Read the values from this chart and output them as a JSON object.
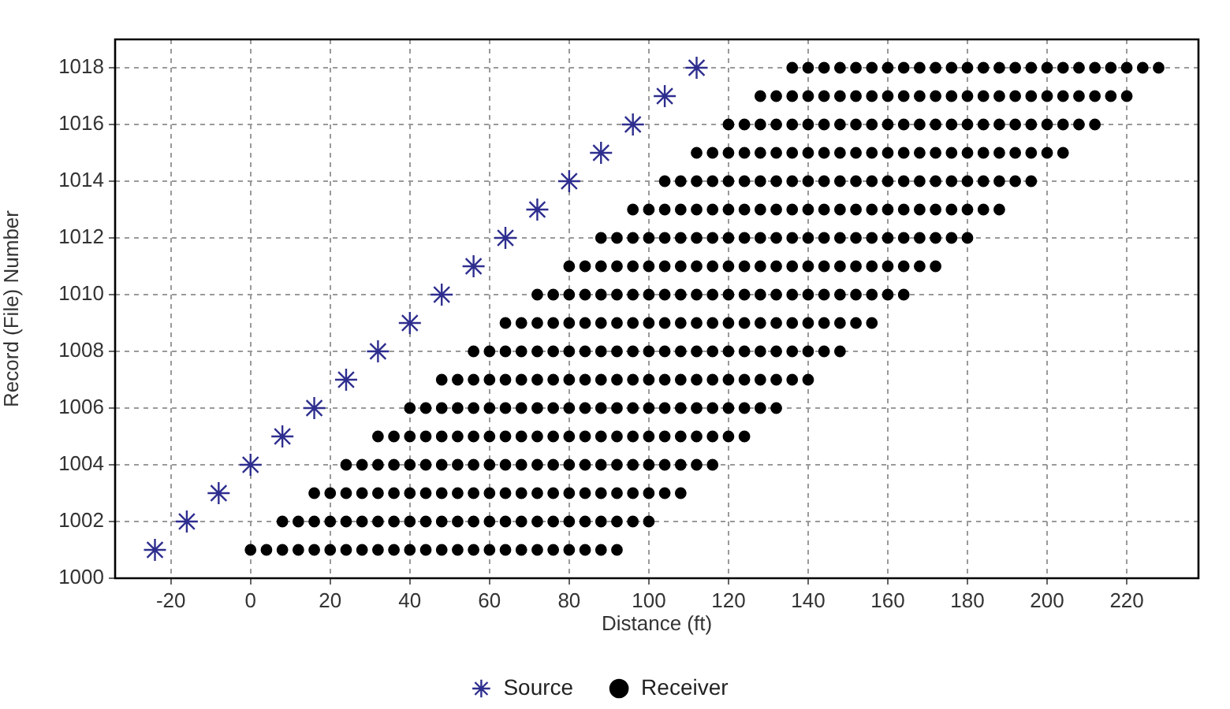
{
  "chart_data": {
    "type": "scatter",
    "xlabel": "Distance (ft)",
    "ylabel": "Record (File) Number",
    "xlim": [
      -34,
      238
    ],
    "xticks": [
      -20,
      0,
      20,
      40,
      60,
      80,
      100,
      120,
      140,
      160,
      180,
      200,
      220
    ],
    "ylim": [
      1000,
      1019
    ],
    "yticks": [
      1000,
      1002,
      1004,
      1006,
      1008,
      1010,
      1012,
      1014,
      1016,
      1018
    ],
    "grid": true,
    "legend": "bottom",
    "series": [
      {
        "name": "Source",
        "color": "#2e2e8f",
        "marker": "cross",
        "x": [
          -24,
          -16,
          -8,
          0,
          8,
          16,
          24,
          32,
          40,
          48,
          56,
          64,
          72,
          80,
          88,
          96,
          104,
          112
        ],
        "values": [
          1001,
          1002,
          1003,
          1004,
          1005,
          1006,
          1007,
          1008,
          1009,
          1010,
          1011,
          1012,
          1013,
          1014,
          1015,
          1016,
          1017,
          1018
        ]
      },
      {
        "name": "Receiver",
        "color": "#000000",
        "marker": "circle",
        "x": [
          0,
          4,
          8,
          12,
          16,
          20,
          24,
          28,
          32,
          36,
          40,
          44,
          48,
          52,
          56,
          60,
          64,
          68,
          72,
          76,
          80,
          84,
          88,
          92,
          8,
          12,
          16,
          20,
          24,
          28,
          32,
          36,
          40,
          44,
          48,
          52,
          56,
          60,
          64,
          68,
          72,
          76,
          80,
          84,
          88,
          92,
          96,
          100,
          16,
          20,
          24,
          28,
          32,
          36,
          40,
          44,
          48,
          52,
          56,
          60,
          64,
          68,
          72,
          76,
          80,
          84,
          88,
          92,
          96,
          100,
          104,
          108,
          24,
          28,
          32,
          36,
          40,
          44,
          48,
          52,
          56,
          60,
          64,
          68,
          72,
          76,
          80,
          84,
          88,
          92,
          96,
          100,
          104,
          108,
          112,
          116,
          32,
          36,
          40,
          44,
          48,
          52,
          56,
          60,
          64,
          68,
          72,
          76,
          80,
          84,
          88,
          92,
          96,
          100,
          104,
          108,
          112,
          116,
          120,
          124,
          40,
          44,
          48,
          52,
          56,
          60,
          64,
          68,
          72,
          76,
          80,
          84,
          88,
          92,
          96,
          100,
          104,
          108,
          112,
          116,
          120,
          124,
          128,
          132,
          48,
          52,
          56,
          60,
          64,
          68,
          72,
          76,
          80,
          84,
          88,
          92,
          96,
          100,
          104,
          108,
          112,
          116,
          120,
          124,
          128,
          132,
          136,
          140,
          56,
          60,
          64,
          68,
          72,
          76,
          80,
          84,
          88,
          92,
          96,
          100,
          104,
          108,
          112,
          116,
          120,
          124,
          128,
          132,
          136,
          140,
          144,
          148,
          64,
          68,
          72,
          76,
          80,
          84,
          88,
          92,
          96,
          100,
          104,
          108,
          112,
          116,
          120,
          124,
          128,
          132,
          136,
          140,
          144,
          148,
          152,
          156,
          72,
          76,
          80,
          84,
          88,
          92,
          96,
          100,
          104,
          108,
          112,
          116,
          120,
          124,
          128,
          132,
          136,
          140,
          144,
          148,
          152,
          156,
          160,
          164,
          80,
          84,
          88,
          92,
          96,
          100,
          104,
          108,
          112,
          116,
          120,
          124,
          128,
          132,
          136,
          140,
          144,
          148,
          152,
          156,
          160,
          164,
          168,
          172,
          88,
          92,
          96,
          100,
          104,
          108,
          112,
          116,
          120,
          124,
          128,
          132,
          136,
          140,
          144,
          148,
          152,
          156,
          160,
          164,
          168,
          172,
          176,
          180,
          96,
          100,
          104,
          108,
          112,
          116,
          120,
          124,
          128,
          132,
          136,
          140,
          144,
          148,
          152,
          156,
          160,
          164,
          168,
          172,
          176,
          180,
          184,
          188,
          104,
          108,
          112,
          116,
          120,
          124,
          128,
          132,
          136,
          140,
          144,
          148,
          152,
          156,
          160,
          164,
          168,
          172,
          176,
          180,
          184,
          188,
          192,
          196,
          112,
          116,
          120,
          124,
          128,
          132,
          136,
          140,
          144,
          148,
          152,
          156,
          160,
          164,
          168,
          172,
          176,
          180,
          184,
          188,
          192,
          196,
          200,
          204,
          120,
          124,
          128,
          132,
          136,
          140,
          144,
          148,
          152,
          156,
          160,
          164,
          168,
          172,
          176,
          180,
          184,
          188,
          192,
          196,
          200,
          204,
          208,
          212,
          128,
          132,
          136,
          140,
          144,
          148,
          152,
          156,
          160,
          164,
          168,
          172,
          176,
          180,
          184,
          188,
          192,
          196,
          200,
          204,
          208,
          212,
          216,
          220,
          136,
          140,
          144,
          148,
          152,
          156,
          160,
          164,
          168,
          172,
          176,
          180,
          184,
          188,
          192,
          196,
          200,
          204,
          208,
          212,
          216,
          220,
          224,
          228
        ],
        "values": [
          1001,
          1001,
          1001,
          1001,
          1001,
          1001,
          1001,
          1001,
          1001,
          1001,
          1001,
          1001,
          1001,
          1001,
          1001,
          1001,
          1001,
          1001,
          1001,
          1001,
          1001,
          1001,
          1001,
          1001,
          1002,
          1002,
          1002,
          1002,
          1002,
          1002,
          1002,
          1002,
          1002,
          1002,
          1002,
          1002,
          1002,
          1002,
          1002,
          1002,
          1002,
          1002,
          1002,
          1002,
          1002,
          1002,
          1002,
          1002,
          1003,
          1003,
          1003,
          1003,
          1003,
          1003,
          1003,
          1003,
          1003,
          1003,
          1003,
          1003,
          1003,
          1003,
          1003,
          1003,
          1003,
          1003,
          1003,
          1003,
          1003,
          1003,
          1003,
          1003,
          1004,
          1004,
          1004,
          1004,
          1004,
          1004,
          1004,
          1004,
          1004,
          1004,
          1004,
          1004,
          1004,
          1004,
          1004,
          1004,
          1004,
          1004,
          1004,
          1004,
          1004,
          1004,
          1004,
          1004,
          1005,
          1005,
          1005,
          1005,
          1005,
          1005,
          1005,
          1005,
          1005,
          1005,
          1005,
          1005,
          1005,
          1005,
          1005,
          1005,
          1005,
          1005,
          1005,
          1005,
          1005,
          1005,
          1005,
          1005,
          1006,
          1006,
          1006,
          1006,
          1006,
          1006,
          1006,
          1006,
          1006,
          1006,
          1006,
          1006,
          1006,
          1006,
          1006,
          1006,
          1006,
          1006,
          1006,
          1006,
          1006,
          1006,
          1006,
          1006,
          1007,
          1007,
          1007,
          1007,
          1007,
          1007,
          1007,
          1007,
          1007,
          1007,
          1007,
          1007,
          1007,
          1007,
          1007,
          1007,
          1007,
          1007,
          1007,
          1007,
          1007,
          1007,
          1007,
          1007,
          1008,
          1008,
          1008,
          1008,
          1008,
          1008,
          1008,
          1008,
          1008,
          1008,
          1008,
          1008,
          1008,
          1008,
          1008,
          1008,
          1008,
          1008,
          1008,
          1008,
          1008,
          1008,
          1008,
          1008,
          1009,
          1009,
          1009,
          1009,
          1009,
          1009,
          1009,
          1009,
          1009,
          1009,
          1009,
          1009,
          1009,
          1009,
          1009,
          1009,
          1009,
          1009,
          1009,
          1009,
          1009,
          1009,
          1009,
          1009,
          1010,
          1010,
          1010,
          1010,
          1010,
          1010,
          1010,
          1010,
          1010,
          1010,
          1010,
          1010,
          1010,
          1010,
          1010,
          1010,
          1010,
          1010,
          1010,
          1010,
          1010,
          1010,
          1010,
          1010,
          1011,
          1011,
          1011,
          1011,
          1011,
          1011,
          1011,
          1011,
          1011,
          1011,
          1011,
          1011,
          1011,
          1011,
          1011,
          1011,
          1011,
          1011,
          1011,
          1011,
          1011,
          1011,
          1011,
          1011,
          1012,
          1012,
          1012,
          1012,
          1012,
          1012,
          1012,
          1012,
          1012,
          1012,
          1012,
          1012,
          1012,
          1012,
          1012,
          1012,
          1012,
          1012,
          1012,
          1012,
          1012,
          1012,
          1012,
          1012,
          1013,
          1013,
          1013,
          1013,
          1013,
          1013,
          1013,
          1013,
          1013,
          1013,
          1013,
          1013,
          1013,
          1013,
          1013,
          1013,
          1013,
          1013,
          1013,
          1013,
          1013,
          1013,
          1013,
          1013,
          1014,
          1014,
          1014,
          1014,
          1014,
          1014,
          1014,
          1014,
          1014,
          1014,
          1014,
          1014,
          1014,
          1014,
          1014,
          1014,
          1014,
          1014,
          1014,
          1014,
          1014,
          1014,
          1014,
          1014,
          1015,
          1015,
          1015,
          1015,
          1015,
          1015,
          1015,
          1015,
          1015,
          1015,
          1015,
          1015,
          1015,
          1015,
          1015,
          1015,
          1015,
          1015,
          1015,
          1015,
          1015,
          1015,
          1015,
          1015,
          1016,
          1016,
          1016,
          1016,
          1016,
          1016,
          1016,
          1016,
          1016,
          1016,
          1016,
          1016,
          1016,
          1016,
          1016,
          1016,
          1016,
          1016,
          1016,
          1016,
          1016,
          1016,
          1016,
          1016,
          1017,
          1017,
          1017,
          1017,
          1017,
          1017,
          1017,
          1017,
          1017,
          1017,
          1017,
          1017,
          1017,
          1017,
          1017,
          1017,
          1017,
          1017,
          1017,
          1017,
          1017,
          1017,
          1017,
          1017,
          1018,
          1018,
          1018,
          1018,
          1018,
          1018,
          1018,
          1018,
          1018,
          1018,
          1018,
          1018,
          1018,
          1018,
          1018,
          1018,
          1018,
          1018,
          1018,
          1018,
          1018,
          1018,
          1018,
          1018
        ]
      }
    ]
  }
}
